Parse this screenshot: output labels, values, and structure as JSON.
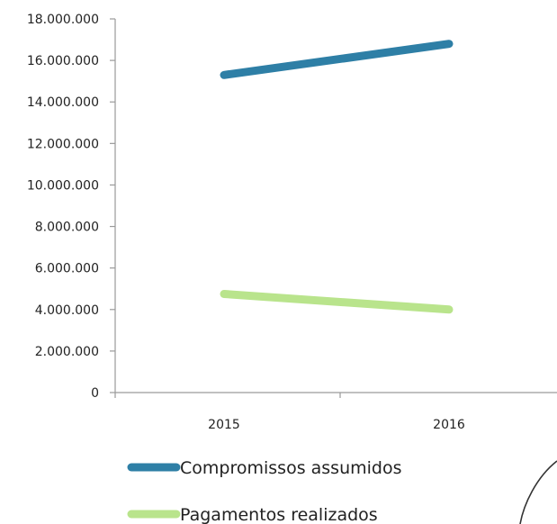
{
  "chart_data": {
    "type": "line",
    "x": [
      "2015",
      "2016"
    ],
    "series": [
      {
        "name": "Compromissos assumidos",
        "values": [
          15300000,
          16800000
        ],
        "color": "#2e7fa6"
      },
      {
        "name": "Pagamentos realizados",
        "values": [
          4750000,
          4000000
        ],
        "color": "#b9e48c"
      }
    ],
    "ylim": [
      0,
      18000000
    ],
    "yticks": [
      0,
      2000000,
      4000000,
      6000000,
      8000000,
      10000000,
      12000000,
      14000000,
      16000000,
      18000000
    ],
    "ytick_labels": [
      "0",
      "2.000.000",
      "4.000.000",
      "6.000.000",
      "8.000.000",
      "10.000.000",
      "12.000.000",
      "14.000.000",
      "16.000.000",
      "18.000.000"
    ],
    "legend_position": "bottom",
    "grid": false,
    "axis_color": "#9a9a9a"
  }
}
